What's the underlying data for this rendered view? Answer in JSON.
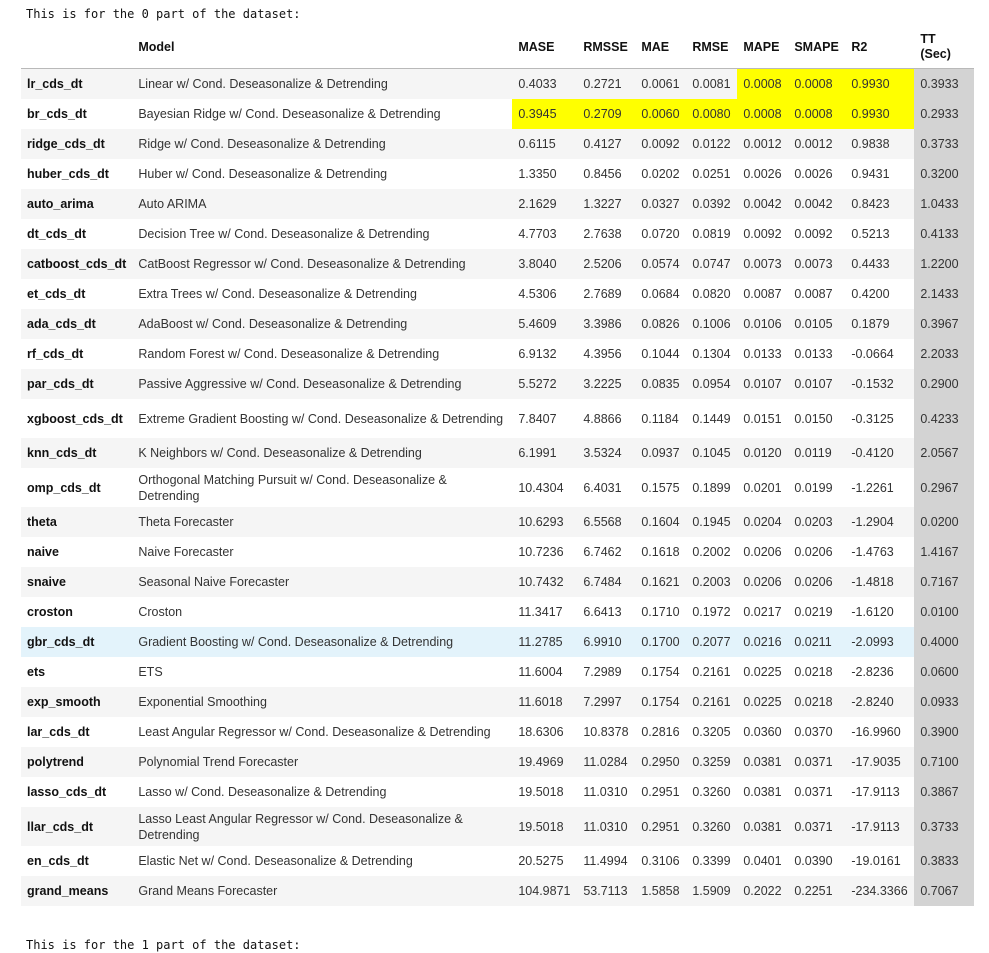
{
  "intro_text": "This is for the 0 part of the dataset:",
  "outro_text": "This is for the 1 part of the dataset:",
  "table": {
    "columns": [
      "",
      "Model",
      "MASE",
      "RMSSE",
      "MAE",
      "RMSE",
      "MAPE",
      "SMAPE",
      "R2",
      "TT\n(Sec)"
    ],
    "highlight_color": "#ffff00",
    "tt_column_color": "#d3d3d3",
    "hover_row_color": "#e3f3fb",
    "rows": [
      {
        "cells": [
          "lr_cds_dt",
          "Linear w/ Cond. Deseasonalize & Detrending",
          "0.4033",
          "0.2721",
          "0.0061",
          "0.0081",
          "0.0008",
          "0.0008",
          "0.9930",
          "0.3933"
        ],
        "highlight": [
          6,
          7,
          8
        ]
      },
      {
        "cells": [
          "br_cds_dt",
          "Bayesian Ridge w/ Cond. Deseasonalize & Detrending",
          "0.3945",
          "0.2709",
          "0.0060",
          "0.0080",
          "0.0008",
          "0.0008",
          "0.9930",
          "0.2933"
        ],
        "highlight": [
          2,
          3,
          4,
          5,
          6,
          7,
          8
        ]
      },
      {
        "cells": [
          "ridge_cds_dt",
          "Ridge w/ Cond. Deseasonalize & Detrending",
          "0.6115",
          "0.4127",
          "0.0092",
          "0.0122",
          "0.0012",
          "0.0012",
          "0.9838",
          "0.3733"
        ],
        "highlight": []
      },
      {
        "cells": [
          "huber_cds_dt",
          "Huber w/ Cond. Deseasonalize & Detrending",
          "1.3350",
          "0.8456",
          "0.0202",
          "0.0251",
          "0.0026",
          "0.0026",
          "0.9431",
          "0.3200"
        ],
        "highlight": []
      },
      {
        "cells": [
          "auto_arima",
          "Auto ARIMA",
          "2.1629",
          "1.3227",
          "0.0327",
          "0.0392",
          "0.0042",
          "0.0042",
          "0.8423",
          "1.0433"
        ],
        "highlight": []
      },
      {
        "cells": [
          "dt_cds_dt",
          "Decision Tree w/ Cond. Deseasonalize & Detrending",
          "4.7703",
          "2.7638",
          "0.0720",
          "0.0819",
          "0.0092",
          "0.0092",
          "0.5213",
          "0.4133"
        ],
        "highlight": []
      },
      {
        "cells": [
          "catboost_cds_dt",
          "CatBoost Regressor w/ Cond. Deseasonalize & Detrending",
          "3.8040",
          "2.5206",
          "0.0574",
          "0.0747",
          "0.0073",
          "0.0073",
          "0.4433",
          "1.2200"
        ],
        "highlight": []
      },
      {
        "cells": [
          "et_cds_dt",
          "Extra Trees w/ Cond. Deseasonalize & Detrending",
          "4.5306",
          "2.7689",
          "0.0684",
          "0.0820",
          "0.0087",
          "0.0087",
          "0.4200",
          "2.1433"
        ],
        "highlight": []
      },
      {
        "cells": [
          "ada_cds_dt",
          "AdaBoost w/ Cond. Deseasonalize & Detrending",
          "5.4609",
          "3.3986",
          "0.0826",
          "0.1006",
          "0.0106",
          "0.0105",
          "0.1879",
          "0.3967"
        ],
        "highlight": []
      },
      {
        "cells": [
          "rf_cds_dt",
          "Random Forest w/ Cond. Deseasonalize & Detrending",
          "6.9132",
          "4.3956",
          "0.1044",
          "0.1304",
          "0.0133",
          "0.0133",
          "-0.0664",
          "2.2033"
        ],
        "highlight": []
      },
      {
        "cells": [
          "par_cds_dt",
          "Passive Aggressive w/ Cond. Deseasonalize & Detrending",
          "5.5272",
          "3.2225",
          "0.0835",
          "0.0954",
          "0.0107",
          "0.0107",
          "-0.1532",
          "0.2900"
        ],
        "highlight": []
      },
      {
        "cells": [
          "xgboost_cds_dt",
          "Extreme Gradient Boosting w/ Cond. Deseasonalize & Detrending",
          "7.8407",
          "4.8866",
          "0.1184",
          "0.1449",
          "0.0151",
          "0.0150",
          "-0.3125",
          "0.4233"
        ],
        "highlight": [],
        "tall": true
      },
      {
        "cells": [
          "knn_cds_dt",
          "K Neighbors w/ Cond. Deseasonalize & Detrending",
          "6.1991",
          "3.5324",
          "0.0937",
          "0.1045",
          "0.0120",
          "0.0119",
          "-0.4120",
          "2.0567"
        ],
        "highlight": []
      },
      {
        "cells": [
          "omp_cds_dt",
          "Orthogonal Matching Pursuit w/ Cond. Deseasonalize & Detrending",
          "10.4304",
          "6.4031",
          "0.1575",
          "0.1899",
          "0.0201",
          "0.0199",
          "-1.2261",
          "0.2967"
        ],
        "highlight": [],
        "tall": true
      },
      {
        "cells": [
          "theta",
          "Theta Forecaster",
          "10.6293",
          "6.5568",
          "0.1604",
          "0.1945",
          "0.0204",
          "0.0203",
          "-1.2904",
          "0.0200"
        ],
        "highlight": []
      },
      {
        "cells": [
          "naive",
          "Naive Forecaster",
          "10.7236",
          "6.7462",
          "0.1618",
          "0.2002",
          "0.0206",
          "0.0206",
          "-1.4763",
          "1.4167"
        ],
        "highlight": []
      },
      {
        "cells": [
          "snaive",
          "Seasonal Naive Forecaster",
          "10.7432",
          "6.7484",
          "0.1621",
          "0.2003",
          "0.0206",
          "0.0206",
          "-1.4818",
          "0.7167"
        ],
        "highlight": []
      },
      {
        "cells": [
          "croston",
          "Croston",
          "11.3417",
          "6.6413",
          "0.1710",
          "0.1972",
          "0.0217",
          "0.0219",
          "-1.6120",
          "0.0100"
        ],
        "highlight": []
      },
      {
        "cells": [
          "gbr_cds_dt",
          "Gradient Boosting w/ Cond. Deseasonalize & Detrending",
          "11.2785",
          "6.9910",
          "0.1700",
          "0.2077",
          "0.0216",
          "0.0211",
          "-2.0993",
          "0.4000"
        ],
        "highlight": [],
        "hover": true
      },
      {
        "cells": [
          "ets",
          "ETS",
          "11.6004",
          "7.2989",
          "0.1754",
          "0.2161",
          "0.0225",
          "0.0218",
          "-2.8236",
          "0.0600"
        ],
        "highlight": []
      },
      {
        "cells": [
          "exp_smooth",
          "Exponential Smoothing",
          "11.6018",
          "7.2997",
          "0.1754",
          "0.2161",
          "0.0225",
          "0.0218",
          "-2.8240",
          "0.0933"
        ],
        "highlight": []
      },
      {
        "cells": [
          "lar_cds_dt",
          "Least Angular Regressor w/ Cond. Deseasonalize & Detrending",
          "18.6306",
          "10.8378",
          "0.2816",
          "0.3205",
          "0.0360",
          "0.0370",
          "-16.9960",
          "0.3900"
        ],
        "highlight": []
      },
      {
        "cells": [
          "polytrend",
          "Polynomial Trend Forecaster",
          "19.4969",
          "11.0284",
          "0.2950",
          "0.3259",
          "0.0381",
          "0.0371",
          "-17.9035",
          "0.7100"
        ],
        "highlight": []
      },
      {
        "cells": [
          "lasso_cds_dt",
          "Lasso w/ Cond. Deseasonalize & Detrending",
          "19.5018",
          "11.0310",
          "0.2951",
          "0.3260",
          "0.0381",
          "0.0371",
          "-17.9113",
          "0.3867"
        ],
        "highlight": []
      },
      {
        "cells": [
          "llar_cds_dt",
          "Lasso Least Angular Regressor w/ Cond. Deseasonalize & Detrending",
          "19.5018",
          "11.0310",
          "0.2951",
          "0.3260",
          "0.0381",
          "0.0371",
          "-17.9113",
          "0.3733"
        ],
        "highlight": [],
        "tall": true
      },
      {
        "cells": [
          "en_cds_dt",
          "Elastic Net w/ Cond. Deseasonalize & Detrending",
          "20.5275",
          "11.4994",
          "0.3106",
          "0.3399",
          "0.0401",
          "0.0390",
          "-19.0161",
          "0.3833"
        ],
        "highlight": []
      },
      {
        "cells": [
          "grand_means",
          "Grand Means Forecaster",
          "104.9871",
          "53.7113",
          "1.5858",
          "1.5909",
          "0.2022",
          "0.2251",
          "-234.3366",
          "0.7067"
        ],
        "highlight": []
      }
    ]
  }
}
